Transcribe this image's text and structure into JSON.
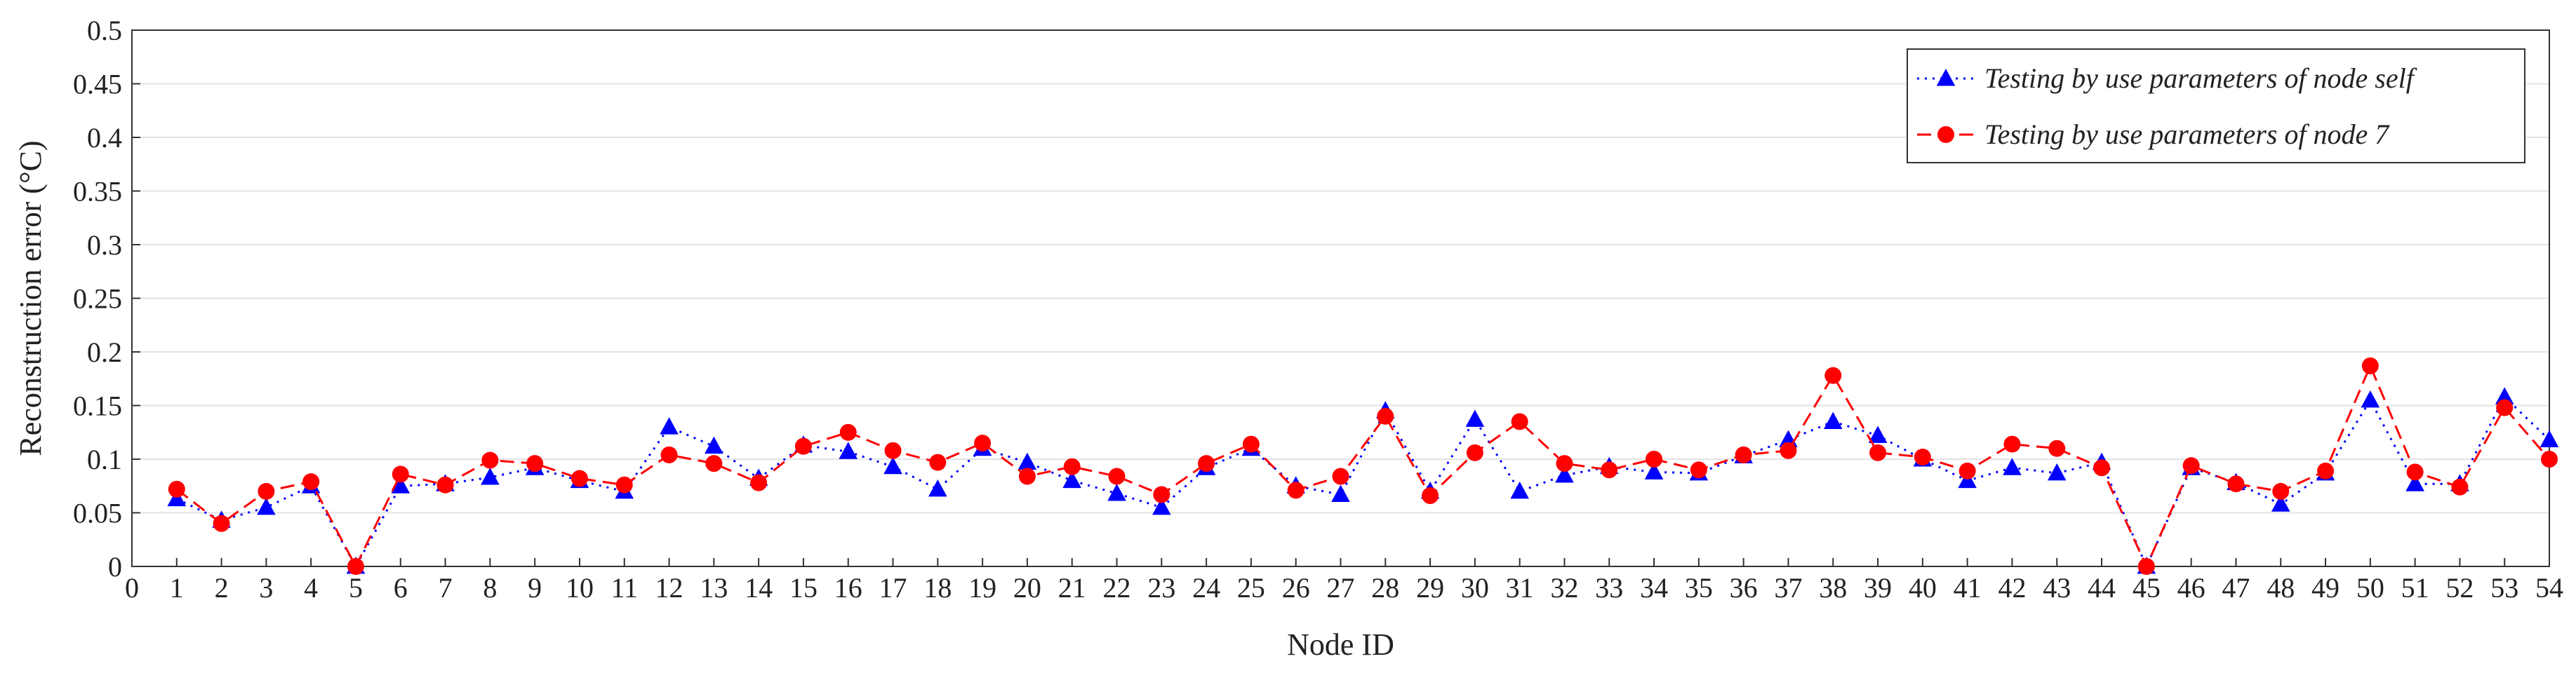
{
  "chart_data": {
    "type": "line",
    "xlabel": "Node ID",
    "ylabel": "Reconstruction error (°C)",
    "xlim": [
      0,
      54
    ],
    "ylim": [
      0,
      0.5
    ],
    "x_ticks": [
      "0",
      "1",
      "2",
      "3",
      "4",
      "5",
      "6",
      "7",
      "8",
      "9",
      "10",
      "11",
      "12",
      "13",
      "14",
      "15",
      "16",
      "17",
      "18",
      "19",
      "20",
      "21",
      "22",
      "23",
      "24",
      "25",
      "26",
      "27",
      "28",
      "29",
      "30",
      "31",
      "32",
      "33",
      "34",
      "35",
      "36",
      "37",
      "38",
      "39",
      "40",
      "41",
      "42",
      "43",
      "44",
      "45",
      "46",
      "47",
      "48",
      "49",
      "50",
      "51",
      "52",
      "53",
      "54"
    ],
    "y_ticks": [
      "0",
      "0.05",
      "0.1",
      "0.15",
      "0.2",
      "0.25",
      "0.3",
      "0.35",
      "0.4",
      "0.45",
      "0.5"
    ],
    "grid": "horizontal",
    "legend_position": "top-right",
    "x": [
      1,
      2,
      3,
      4,
      5,
      6,
      7,
      8,
      9,
      10,
      11,
      12,
      13,
      14,
      15,
      16,
      17,
      18,
      19,
      20,
      21,
      22,
      23,
      24,
      25,
      26,
      27,
      28,
      29,
      30,
      31,
      32,
      33,
      34,
      35,
      36,
      37,
      38,
      39,
      40,
      41,
      42,
      43,
      44,
      45,
      46,
      47,
      48,
      49,
      50,
      51,
      52,
      53,
      54
    ],
    "series": [
      {
        "name": "Testing by use parameters of node self",
        "color": "#0000ff",
        "marker": "triangle",
        "line_style": "dotted",
        "values": [
          0.063,
          0.043,
          0.055,
          0.075,
          0.0,
          0.075,
          0.077,
          0.083,
          0.092,
          0.08,
          0.07,
          0.13,
          0.112,
          0.082,
          0.113,
          0.107,
          0.093,
          0.072,
          0.11,
          0.097,
          0.08,
          0.068,
          0.055,
          0.092,
          0.11,
          0.075,
          0.067,
          0.145,
          0.07,
          0.137,
          0.07,
          0.085,
          0.093,
          0.088,
          0.087,
          0.103,
          0.118,
          0.135,
          0.122,
          0.1,
          0.08,
          0.092,
          0.087,
          0.097,
          0.0,
          0.092,
          0.078,
          0.058,
          0.087,
          0.155,
          0.077,
          0.077,
          0.158,
          0.118
        ]
      },
      {
        "name": "Testing by use parameters of node 7",
        "color": "#ff0000",
        "marker": "circle",
        "line_style": "dashed",
        "values": [
          0.072,
          0.04,
          0.07,
          0.079,
          0.0,
          0.086,
          0.076,
          0.099,
          0.096,
          0.082,
          0.076,
          0.104,
          0.096,
          0.078,
          0.112,
          0.125,
          0.108,
          0.097,
          0.115,
          0.084,
          0.093,
          0.084,
          0.067,
          0.096,
          0.114,
          0.071,
          0.084,
          0.14,
          0.066,
          0.106,
          0.135,
          0.096,
          0.09,
          0.1,
          0.09,
          0.104,
          0.108,
          0.178,
          0.106,
          0.102,
          0.089,
          0.114,
          0.11,
          0.092,
          0.0,
          0.094,
          0.077,
          0.07,
          0.089,
          0.187,
          0.088,
          0.074,
          0.148,
          0.1
        ]
      }
    ]
  }
}
